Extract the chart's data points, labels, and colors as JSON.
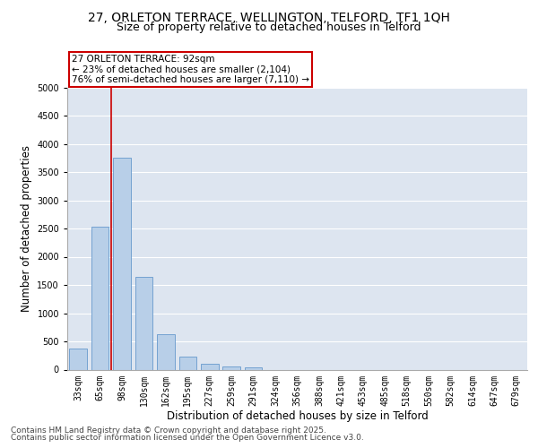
{
  "title_line1": "27, ORLETON TERRACE, WELLINGTON, TELFORD, TF1 1QH",
  "title_line2": "Size of property relative to detached houses in Telford",
  "xlabel": "Distribution of detached houses by size in Telford",
  "ylabel": "Number of detached properties",
  "categories": [
    "33sqm",
    "65sqm",
    "98sqm",
    "130sqm",
    "162sqm",
    "195sqm",
    "227sqm",
    "259sqm",
    "291sqm",
    "324sqm",
    "356sqm",
    "388sqm",
    "421sqm",
    "453sqm",
    "485sqm",
    "518sqm",
    "550sqm",
    "582sqm",
    "614sqm",
    "647sqm",
    "679sqm"
  ],
  "values": [
    380,
    2530,
    3760,
    1650,
    620,
    230,
    100,
    55,
    35,
    0,
    0,
    0,
    0,
    0,
    0,
    0,
    0,
    0,
    0,
    0,
    0
  ],
  "bar_color": "#b8cfe8",
  "bar_edge_color": "#6699cc",
  "vline_x_index": 2,
  "vline_color": "#cc0000",
  "annotation_text": "27 ORLETON TERRACE: 92sqm\n← 23% of detached houses are smaller (2,104)\n76% of semi-detached houses are larger (7,110) →",
  "annotation_box_color": "#cc0000",
  "annotation_text_color": "#000000",
  "annotation_fontsize": 7.5,
  "ylim": [
    0,
    5000
  ],
  "yticks": [
    0,
    500,
    1000,
    1500,
    2000,
    2500,
    3000,
    3500,
    4000,
    4500,
    5000
  ],
  "background_color": "#dde5f0",
  "grid_color": "#ffffff",
  "title_fontsize": 10,
  "subtitle_fontsize": 9,
  "axis_label_fontsize": 8.5,
  "tick_fontsize": 7,
  "footer_line1": "Contains HM Land Registry data © Crown copyright and database right 2025.",
  "footer_line2": "Contains public sector information licensed under the Open Government Licence v3.0.",
  "footer_fontsize": 6.5
}
